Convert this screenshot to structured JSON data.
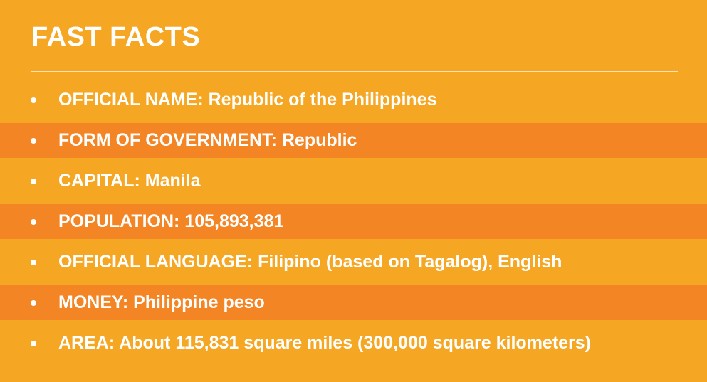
{
  "title": "FAST FACTS",
  "facts": [
    "OFFICIAL NAME: Republic of the Philippines",
    "FORM OF GOVERNMENT: Republic",
    "CAPITAL: Manila",
    "POPULATION: 105,893,381",
    "OFFICIAL LANGUAGE: Filipino (based on Tagalog), English",
    "MONEY: Philippine peso",
    "AREA: About 115,831 square miles (300,000 square kilometers)"
  ],
  "colors": {
    "background": "#f5a623",
    "band": "#f38525",
    "text": "#ffffff"
  }
}
